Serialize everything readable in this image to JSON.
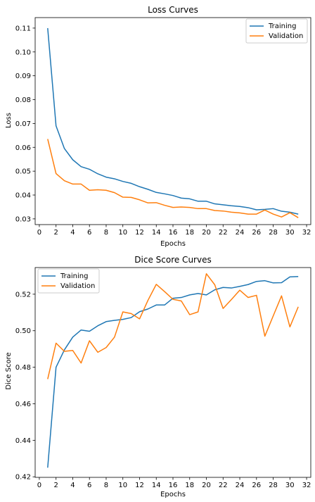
{
  "chart_data": [
    {
      "type": "line",
      "title": "Loss Curves",
      "xlabel": "Epochs",
      "ylabel": "Loss",
      "xlim": [
        -0.5,
        32.5
      ],
      "ylim": [
        0.0276,
        0.1144
      ],
      "xticks": [
        0,
        2,
        4,
        6,
        8,
        10,
        12,
        14,
        16,
        18,
        20,
        22,
        24,
        26,
        28,
        30,
        32
      ],
      "yticks": [
        0.03,
        0.04,
        0.05,
        0.06,
        0.07,
        0.08,
        0.09,
        0.1,
        0.11
      ],
      "ytick_labels": [
        "0.03",
        "0.04",
        "0.05",
        "0.06",
        "0.07",
        "0.08",
        "0.09",
        "0.10",
        "0.11"
      ],
      "grid": false,
      "legend_position": "upper right",
      "x": [
        1,
        2,
        3,
        4,
        5,
        6,
        7,
        8,
        9,
        10,
        11,
        12,
        13,
        14,
        15,
        16,
        17,
        18,
        19,
        20,
        21,
        22,
        23,
        24,
        25,
        26,
        27,
        28,
        29,
        30,
        31
      ],
      "series": [
        {
          "name": "Training",
          "color": "#1f77b4",
          "values": [
            0.11,
            0.069,
            0.0595,
            0.0548,
            0.0519,
            0.0508,
            0.0489,
            0.0475,
            0.0468,
            0.0457,
            0.0449,
            0.0435,
            0.0424,
            0.0411,
            0.0405,
            0.0398,
            0.0387,
            0.0384,
            0.0374,
            0.0374,
            0.0363,
            0.0359,
            0.0355,
            0.0352,
            0.0347,
            0.0338,
            0.034,
            0.0343,
            0.0332,
            0.0328,
            0.032
          ]
        },
        {
          "name": "Validation",
          "color": "#ff7f0e",
          "values": [
            0.0635,
            0.049,
            0.046,
            0.0446,
            0.0446,
            0.042,
            0.0422,
            0.042,
            0.041,
            0.0391,
            0.039,
            0.038,
            0.0367,
            0.0368,
            0.0357,
            0.0348,
            0.035,
            0.0348,
            0.0343,
            0.0343,
            0.0335,
            0.0333,
            0.0328,
            0.0325,
            0.032,
            0.032,
            0.0337,
            0.032,
            0.0308,
            0.0326,
            0.0305
          ]
        }
      ]
    },
    {
      "type": "line",
      "title": "Dice Score Curves",
      "xlabel": "Epochs",
      "ylabel": "Dice Score",
      "xlim": [
        -0.5,
        32.5
      ],
      "ylim": [
        0.4197,
        0.5346
      ],
      "xticks": [
        0,
        2,
        4,
        6,
        8,
        10,
        12,
        14,
        16,
        18,
        20,
        22,
        24,
        26,
        28,
        30,
        32
      ],
      "yticks": [
        0.42,
        0.44,
        0.46,
        0.48,
        0.5,
        0.52
      ],
      "ytick_labels": [
        "0.42",
        "0.44",
        "0.46",
        "0.48",
        "0.50",
        "0.52"
      ],
      "grid": false,
      "legend_position": "upper left",
      "x": [
        1,
        2,
        3,
        4,
        5,
        6,
        7,
        8,
        9,
        10,
        11,
        12,
        13,
        14,
        15,
        16,
        17,
        18,
        19,
        20,
        21,
        22,
        23,
        24,
        25,
        26,
        27,
        28,
        29,
        30,
        31
      ],
      "series": [
        {
          "name": "Training",
          "color": "#1f77b4",
          "values": [
            0.425,
            0.48,
            0.4895,
            0.4965,
            0.5004,
            0.4997,
            0.5027,
            0.505,
            0.5057,
            0.5062,
            0.5072,
            0.5104,
            0.5119,
            0.5141,
            0.5141,
            0.5178,
            0.5182,
            0.5196,
            0.5204,
            0.5196,
            0.5224,
            0.5237,
            0.5234,
            0.5243,
            0.5253,
            0.527,
            0.5274,
            0.5262,
            0.5263,
            0.5295,
            0.5297
          ]
        },
        {
          "name": "Validation",
          "color": "#ff7f0e",
          "values": [
            0.4735,
            0.4932,
            0.4887,
            0.4892,
            0.4823,
            0.4945,
            0.4882,
            0.4908,
            0.4965,
            0.5103,
            0.5094,
            0.5065,
            0.5166,
            0.5254,
            0.5214,
            0.5172,
            0.5163,
            0.5088,
            0.5103,
            0.5312,
            0.5252,
            0.5122,
            0.5171,
            0.5222,
            0.5182,
            0.5194,
            0.497,
            0.5081,
            0.5191,
            0.5021,
            0.5131
          ]
        }
      ]
    }
  ]
}
